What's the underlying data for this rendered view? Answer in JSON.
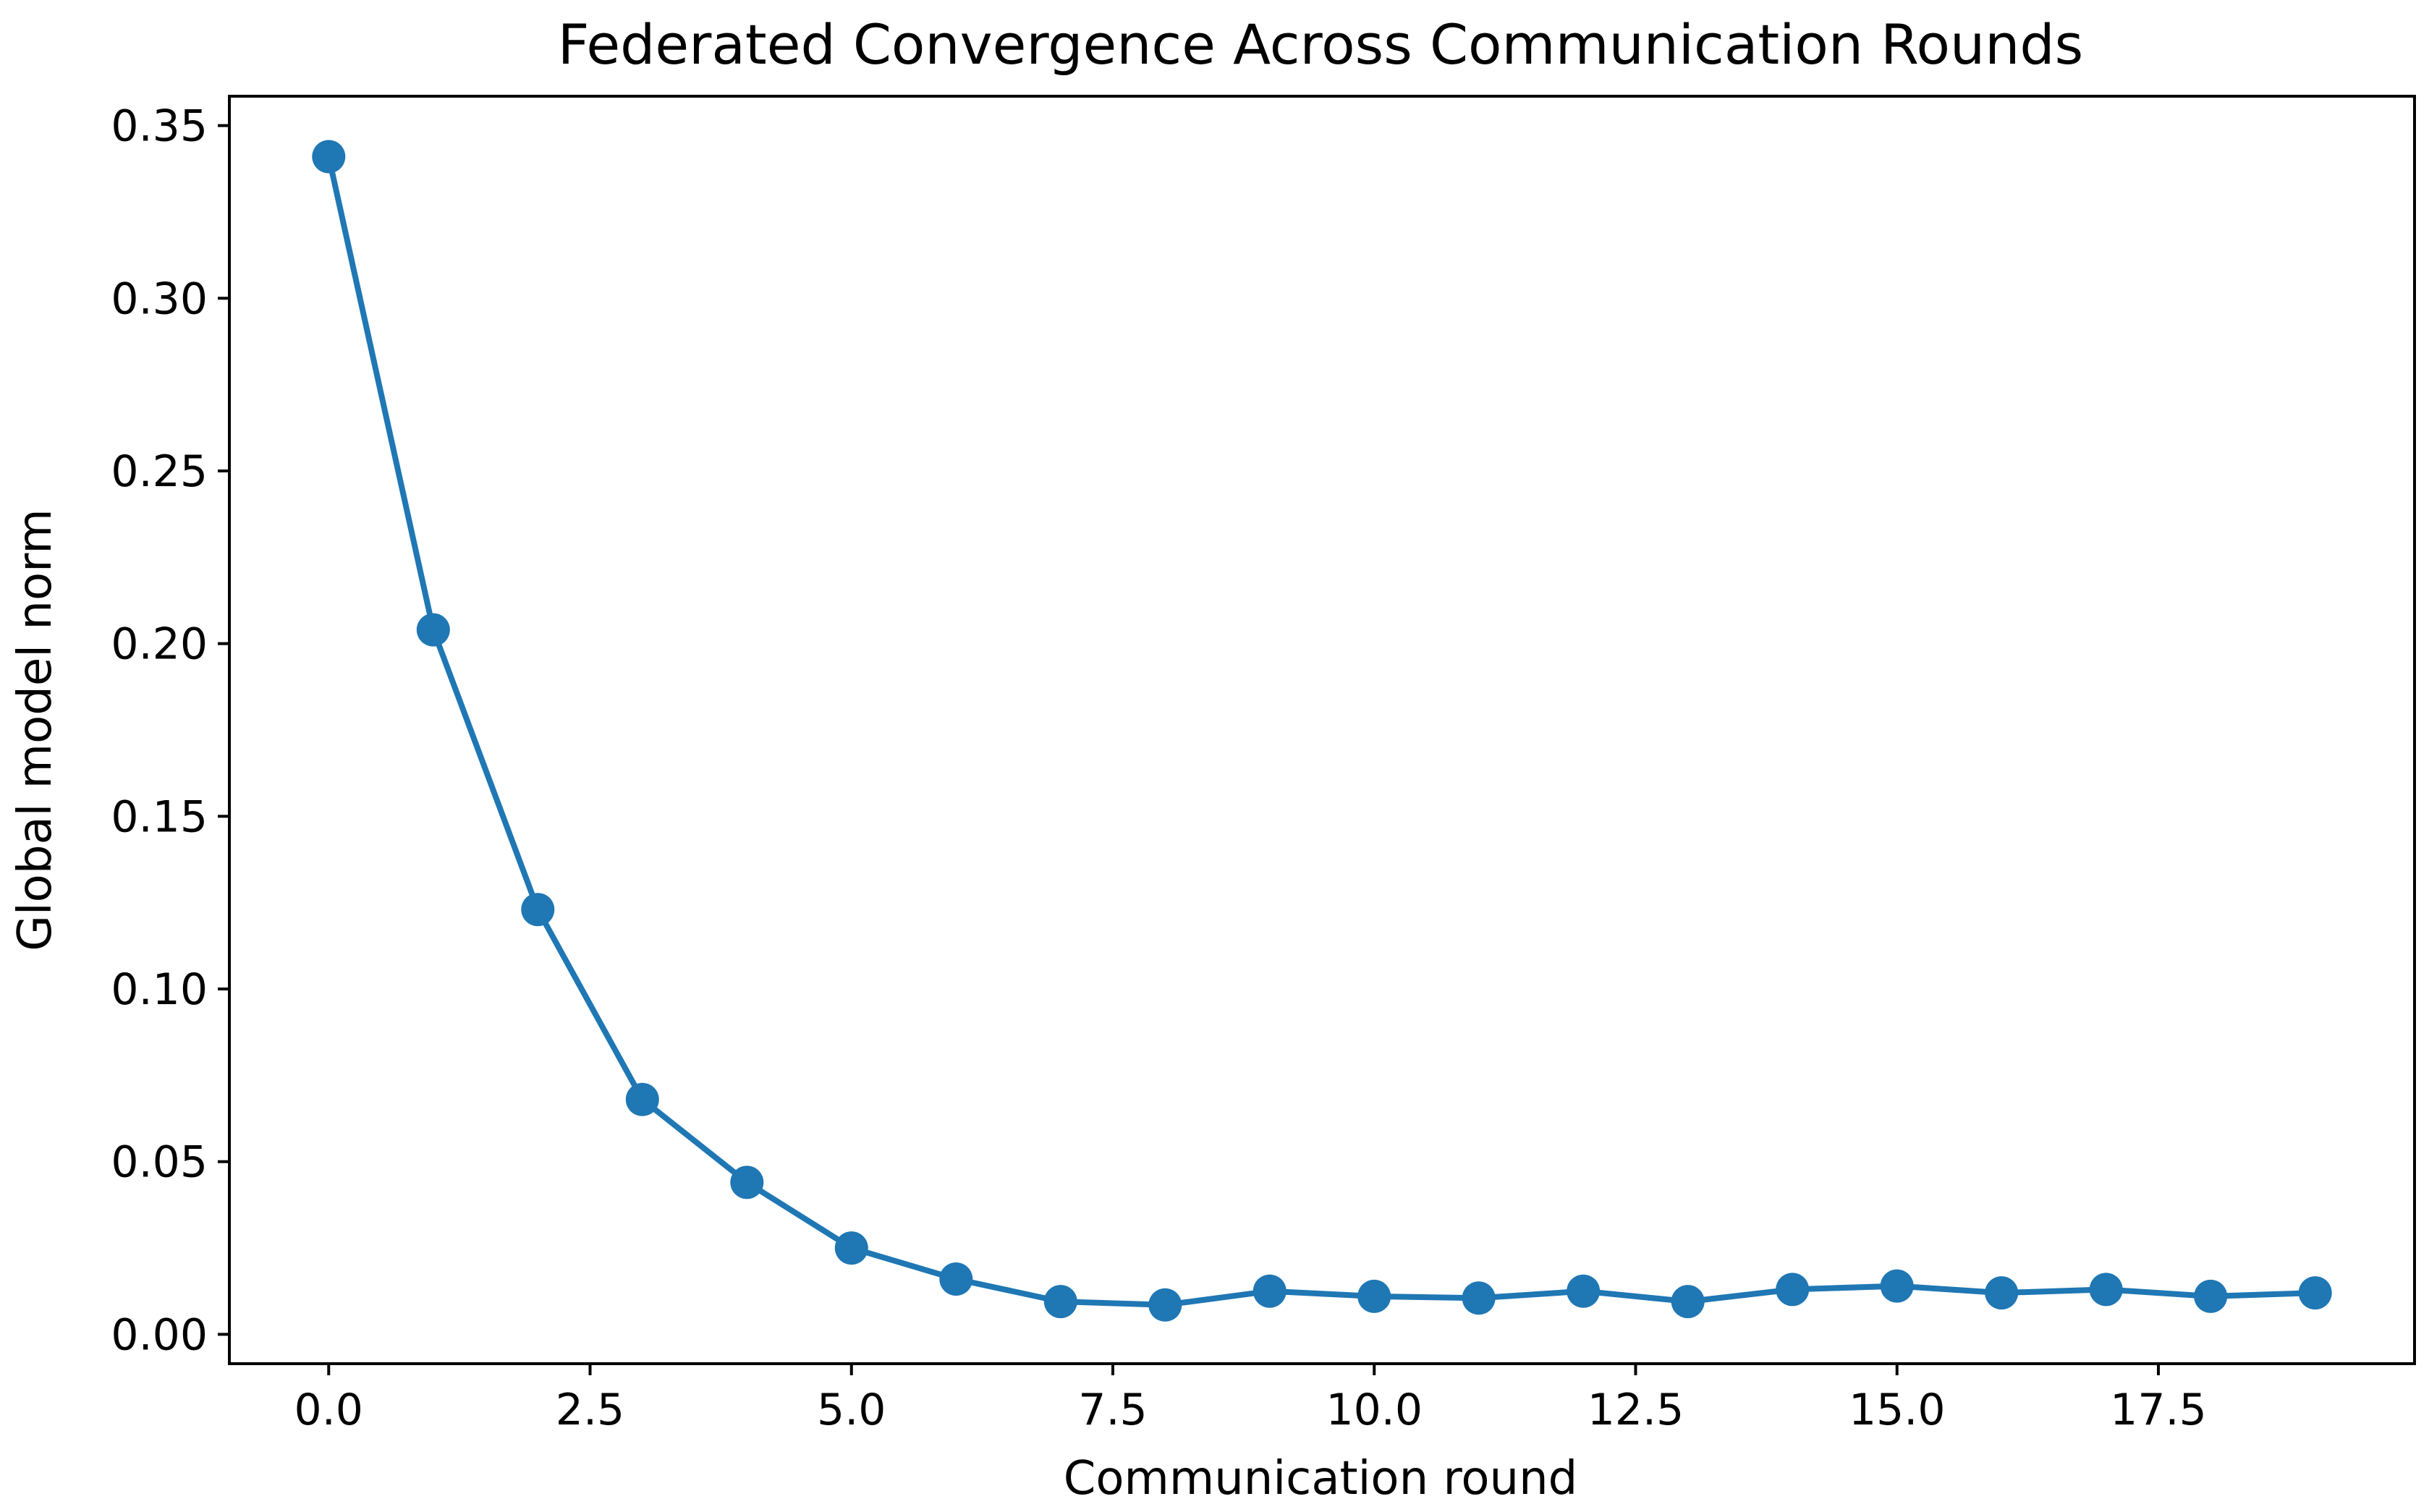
{
  "chart_data": {
    "type": "line",
    "title": "Federated Convergence Across Communication Rounds",
    "xlabel": "Communication round",
    "ylabel": "Global model norm",
    "xlim": [
      -0.95,
      19.95
    ],
    "ylim": [
      -0.0085,
      0.3585
    ],
    "x_ticks": [
      0.0,
      2.5,
      5.0,
      7.5,
      10.0,
      12.5,
      15.0,
      17.5
    ],
    "x_tick_labels": [
      "0.0",
      "2.5",
      "5.0",
      "7.5",
      "10.0",
      "12.5",
      "15.0",
      "17.5"
    ],
    "y_ticks": [
      0.0,
      0.05,
      0.1,
      0.15,
      0.2,
      0.25,
      0.3,
      0.35
    ],
    "y_tick_labels": [
      "0.00",
      "0.05",
      "0.10",
      "0.15",
      "0.20",
      "0.25",
      "0.30",
      "0.35"
    ],
    "grid": false,
    "legend": "none",
    "series": [
      {
        "color": "#1f77b4",
        "marker": "circle",
        "x": [
          0,
          1,
          2,
          3,
          4,
          5,
          6,
          7,
          8,
          9,
          10,
          11,
          12,
          13,
          14,
          15,
          16,
          17,
          18,
          19
        ],
        "y": [
          0.341,
          0.204,
          0.123,
          0.068,
          0.044,
          0.025,
          0.016,
          0.0095,
          0.0085,
          0.0125,
          0.011,
          0.0105,
          0.0125,
          0.0095,
          0.013,
          0.014,
          0.012,
          0.013,
          0.011,
          0.012
        ]
      }
    ]
  }
}
